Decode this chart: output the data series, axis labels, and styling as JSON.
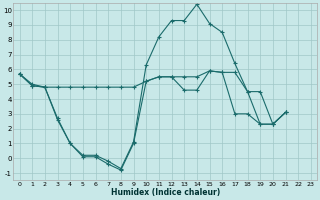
{
  "xlabel": "Humidex (Indice chaleur)",
  "background_color": "#c8e8e8",
  "grid_color": "#a0c8c8",
  "line_color": "#1a6b6b",
  "xlim": [
    -0.5,
    23.5
  ],
  "ylim": [
    -1.5,
    10.5
  ],
  "xticks": [
    0,
    1,
    2,
    3,
    4,
    5,
    6,
    7,
    8,
    9,
    10,
    11,
    12,
    13,
    14,
    15,
    16,
    17,
    18,
    19,
    20,
    21,
    22,
    23
  ],
  "yticks": [
    -1,
    0,
    1,
    2,
    3,
    4,
    5,
    6,
    7,
    8,
    9,
    10
  ],
  "series": [
    {
      "x": [
        0,
        1,
        2,
        3,
        4,
        5,
        6,
        7,
        8,
        9,
        10,
        11,
        12,
        13,
        14,
        15,
        16,
        17,
        18,
        19,
        20,
        21
      ],
      "y": [
        5.7,
        5.0,
        4.8,
        2.7,
        1.0,
        0.2,
        0.2,
        -0.2,
        -0.7,
        1.1,
        6.3,
        8.2,
        9.3,
        9.3,
        10.4,
        9.1,
        8.5,
        6.4,
        4.5,
        2.3,
        2.3,
        3.1
      ]
    },
    {
      "x": [
        0,
        1,
        2,
        3,
        4,
        5,
        6,
        7,
        8,
        9,
        10,
        11,
        12,
        13,
        14,
        15,
        16,
        17,
        18,
        19,
        20,
        21
      ],
      "y": [
        5.7,
        4.9,
        4.8,
        4.8,
        4.8,
        4.8,
        4.8,
        4.8,
        4.8,
        4.8,
        5.2,
        5.5,
        5.5,
        5.5,
        5.5,
        5.9,
        5.8,
        5.8,
        4.5,
        4.5,
        2.3,
        3.1
      ]
    },
    {
      "x": [
        0,
        1,
        2,
        3,
        4,
        5,
        6,
        7,
        8,
        9,
        10,
        11,
        12,
        13,
        14,
        15,
        16,
        17,
        18,
        19,
        20,
        21
      ],
      "y": [
        5.7,
        4.9,
        4.8,
        2.6,
        1.0,
        0.1,
        0.1,
        -0.4,
        -0.8,
        1.0,
        5.2,
        5.5,
        5.5,
        4.6,
        4.6,
        5.9,
        5.8,
        3.0,
        3.0,
        2.3,
        2.3,
        3.1
      ]
    }
  ]
}
